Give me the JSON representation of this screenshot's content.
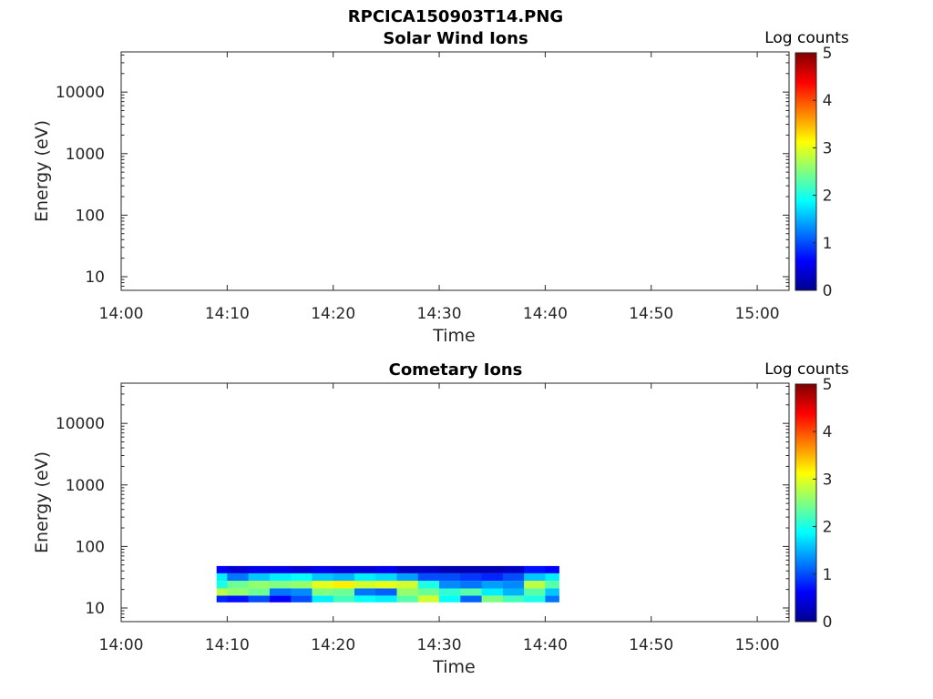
{
  "figure": {
    "title": "RPCICA150903T14.PNG"
  },
  "colors": {
    "jet": [
      "#00008f",
      "#0000ff",
      "#0080ff",
      "#00ffff",
      "#80ff80",
      "#ffff00",
      "#ff8000",
      "#ff0000",
      "#800000"
    ]
  },
  "chart_data": [
    {
      "type": "heatmap",
      "title": "Solar Wind Ions",
      "xlabel": "Time",
      "ylabel": "Energy (eV)",
      "xscale": "time",
      "xlim": [
        "14:00",
        "15:03"
      ],
      "yscale": "log",
      "ylim": [
        6,
        45000
      ],
      "xticks": [
        "14:00",
        "14:10",
        "14:20",
        "14:30",
        "14:40",
        "14:50",
        "15:00"
      ],
      "yticks": [
        "10",
        "100",
        "1000",
        "10000"
      ],
      "colorbar": {
        "label": "Log counts",
        "min": 0,
        "max": 5,
        "ticks": [
          "0",
          "1",
          "2",
          "3",
          "4",
          "5"
        ]
      },
      "data": []
    },
    {
      "type": "heatmap",
      "title": "Cometary Ions",
      "xlabel": "Time",
      "ylabel": "Energy (eV)",
      "xscale": "time",
      "xlim": [
        "14:00",
        "15:03"
      ],
      "yscale": "log",
      "ylim": [
        6,
        45000
      ],
      "xticks": [
        "14:00",
        "14:10",
        "14:20",
        "14:30",
        "14:40",
        "14:50",
        "15:00"
      ],
      "yticks": [
        "10",
        "100",
        "1000",
        "10000"
      ],
      "colorbar": {
        "label": "Log counts",
        "min": 0,
        "max": 5,
        "ticks": [
          "0",
          "1",
          "2",
          "3",
          "4",
          "5"
        ]
      },
      "time_range": [
        "14:09",
        "14:41"
      ],
      "energy_bins": [
        14,
        18,
        24,
        32,
        42
      ],
      "data": [
        {
          "time": "14:09",
          "log_counts": [
            0.8,
            2.8,
            2.0,
            1.8,
            0.6
          ]
        },
        {
          "time": "14:11",
          "log_counts": [
            0.7,
            2.6,
            2.4,
            1.2,
            0.4
          ]
        },
        {
          "time": "14:13",
          "log_counts": [
            1.0,
            2.4,
            2.6,
            1.6,
            0.5
          ]
        },
        {
          "time": "14:15",
          "log_counts": [
            0.6,
            1.2,
            2.5,
            1.8,
            0.5
          ]
        },
        {
          "time": "14:17",
          "log_counts": [
            1.0,
            1.3,
            2.6,
            1.9,
            0.4
          ]
        },
        {
          "time": "14:19",
          "log_counts": [
            1.8,
            2.5,
            3.0,
            1.6,
            0.5
          ]
        },
        {
          "time": "14:21",
          "log_counts": [
            2.2,
            2.4,
            3.2,
            1.5,
            0.4
          ]
        },
        {
          "time": "14:23",
          "log_counts": [
            1.9,
            1.2,
            2.9,
            1.8,
            0.4
          ]
        },
        {
          "time": "14:25",
          "log_counts": [
            1.8,
            1.1,
            3.0,
            1.7,
            0.5
          ]
        },
        {
          "time": "14:27",
          "log_counts": [
            2.3,
            2.6,
            2.9,
            1.4,
            0.3
          ]
        },
        {
          "time": "14:29",
          "log_counts": [
            2.9,
            2.4,
            2.0,
            1.0,
            0.3
          ]
        },
        {
          "time": "14:31",
          "log_counts": [
            1.9,
            2.1,
            1.3,
            1.0,
            0.2
          ]
        },
        {
          "time": "14:33",
          "log_counts": [
            1.1,
            2.3,
            1.2,
            0.9,
            0.2
          ]
        },
        {
          "time": "14:35",
          "log_counts": [
            2.5,
            1.8,
            1.4,
            0.8,
            0.2
          ]
        },
        {
          "time": "14:37",
          "log_counts": [
            2.2,
            1.5,
            1.3,
            1.0,
            0.3
          ]
        },
        {
          "time": "14:39",
          "log_counts": [
            2.0,
            2.3,
            2.8,
            1.6,
            0.7
          ]
        },
        {
          "time": "14:41",
          "log_counts": [
            1.2,
            1.6,
            2.3,
            1.8,
            0.6
          ]
        }
      ]
    }
  ]
}
